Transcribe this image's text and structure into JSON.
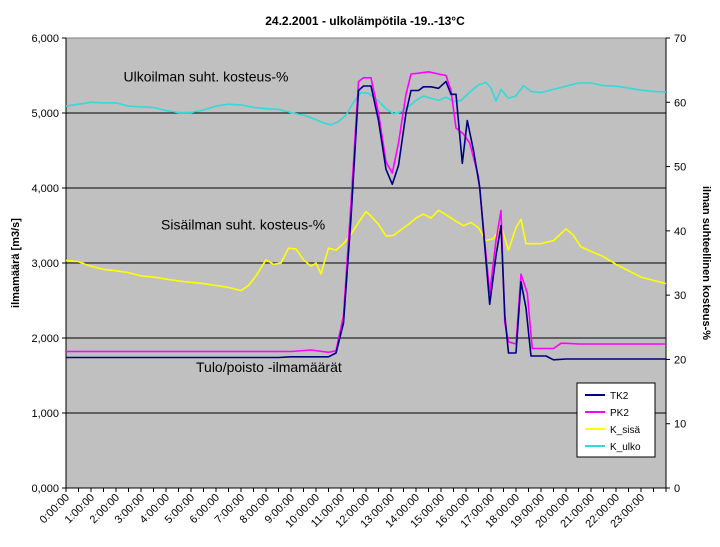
{
  "chart_data": {
    "type": "line",
    "title": "24.2.2001 - ulkolämpötila -19..-13°C",
    "ylabel_left": "ilmamäärä [m3/s]",
    "ylabel_right": "ilman suhteellinen kosteus-%",
    "xlabel": "",
    "ylim_left": [
      0,
      6
    ],
    "yticks_left": [
      "0,000",
      "1,000",
      "2,000",
      "3,000",
      "4,000",
      "5,000",
      "6,000"
    ],
    "ylim_right": [
      0,
      70
    ],
    "yticks_right": [
      "0",
      "10",
      "20",
      "30",
      "40",
      "50",
      "60",
      "70"
    ],
    "xlim": [
      0,
      24
    ],
    "xticks": [
      "0:00:00",
      "1:00:00",
      "2:00:00",
      "3:00:00",
      "4:00:00",
      "5:00:00",
      "6:00:00",
      "7:00:00",
      "8:00:00",
      "9:00:00",
      "10:00:00",
      "11:00:00",
      "12:00:00",
      "13:00:00",
      "14:00:00",
      "15:00:00",
      "16:00:00",
      "17:00:00",
      "18:00:00",
      "19:00:00",
      "20:00:00",
      "21:00:00",
      "22:00:00",
      "23:00:00"
    ],
    "grid": true,
    "legend_position": "lower-right",
    "annotations": [
      {
        "text": "Ulkoilman suht. kosteus-%",
        "x": 2.3,
        "y": 5.42
      },
      {
        "text": "Sisäilman suht. kosteus-%",
        "x": 3.8,
        "y": 3.45
      },
      {
        "text": "Tulo/poisto -ilmamäärät",
        "x": 5.2,
        "y": 1.55
      }
    ],
    "series": [
      {
        "name": "TK2",
        "axis": "left",
        "color": "#000080",
        "points": [
          [
            0,
            1.74
          ],
          [
            8.5,
            1.74
          ],
          [
            9,
            1.75
          ],
          [
            10.5,
            1.75
          ],
          [
            10.8,
            1.8
          ],
          [
            11.1,
            2.2
          ],
          [
            11.4,
            3.6
          ],
          [
            11.7,
            5.3
          ],
          [
            11.9,
            5.36
          ],
          [
            12.2,
            5.36
          ],
          [
            12.5,
            4.9
          ],
          [
            12.8,
            4.25
          ],
          [
            13.05,
            4.05
          ],
          [
            13.3,
            4.3
          ],
          [
            13.6,
            5.0
          ],
          [
            13.8,
            5.3
          ],
          [
            14.1,
            5.3
          ],
          [
            14.3,
            5.35
          ],
          [
            14.6,
            5.35
          ],
          [
            14.9,
            5.33
          ],
          [
            15.2,
            5.42
          ],
          [
            15.4,
            5.25
          ],
          [
            15.6,
            5.25
          ],
          [
            15.85,
            4.33
          ],
          [
            16.05,
            4.9
          ],
          [
            16.3,
            4.5
          ],
          [
            16.55,
            4.0
          ],
          [
            16.95,
            2.45
          ],
          [
            17.2,
            3.1
          ],
          [
            17.4,
            3.5
          ],
          [
            17.55,
            2.3
          ],
          [
            17.7,
            1.8
          ],
          [
            18.0,
            1.8
          ],
          [
            18.2,
            2.75
          ],
          [
            18.4,
            2.4
          ],
          [
            18.6,
            1.76
          ],
          [
            19.2,
            1.76
          ],
          [
            19.5,
            1.71
          ],
          [
            20,
            1.72
          ],
          [
            24,
            1.72
          ]
        ]
      },
      {
        "name": "PK2",
        "axis": "left",
        "color": "#ff00ff",
        "points": [
          [
            0,
            1.82
          ],
          [
            9,
            1.82
          ],
          [
            9.8,
            1.84
          ],
          [
            10.5,
            1.81
          ],
          [
            10.8,
            1.83
          ],
          [
            11.1,
            2.3
          ],
          [
            11.4,
            3.8
          ],
          [
            11.7,
            5.42
          ],
          [
            11.9,
            5.47
          ],
          [
            12.2,
            5.47
          ],
          [
            12.5,
            5.0
          ],
          [
            12.8,
            4.35
          ],
          [
            13.05,
            4.2
          ],
          [
            13.3,
            4.6
          ],
          [
            13.6,
            5.25
          ],
          [
            13.8,
            5.52
          ],
          [
            14.1,
            5.53
          ],
          [
            14.5,
            5.55
          ],
          [
            14.9,
            5.52
          ],
          [
            15.2,
            5.5
          ],
          [
            15.4,
            5.3
          ],
          [
            15.6,
            4.8
          ],
          [
            15.9,
            4.72
          ],
          [
            16.15,
            4.6
          ],
          [
            16.5,
            4.15
          ],
          [
            16.95,
            2.6
          ],
          [
            17.2,
            3.3
          ],
          [
            17.4,
            3.7
          ],
          [
            17.55,
            2.2
          ],
          [
            17.7,
            1.95
          ],
          [
            18.0,
            1.92
          ],
          [
            18.2,
            2.85
          ],
          [
            18.45,
            2.6
          ],
          [
            18.65,
            1.86
          ],
          [
            19.5,
            1.86
          ],
          [
            19.8,
            1.93
          ],
          [
            20,
            1.93
          ],
          [
            20.5,
            1.92
          ],
          [
            24,
            1.92
          ]
        ]
      },
      {
        "name": "K_sisä",
        "axis": "right",
        "color": "#ffff00",
        "points": [
          [
            0,
            35.4
          ],
          [
            0.5,
            35.2
          ],
          [
            1,
            34.5
          ],
          [
            1.5,
            34.0
          ],
          [
            2,
            33.8
          ],
          [
            2.5,
            33.5
          ],
          [
            3,
            33.0
          ],
          [
            3.5,
            32.8
          ],
          [
            4,
            32.5
          ],
          [
            4.5,
            32.2
          ],
          [
            5,
            32.0
          ],
          [
            5.5,
            31.8
          ],
          [
            6,
            31.5
          ],
          [
            6.5,
            31.2
          ],
          [
            7,
            30.7
          ],
          [
            7.3,
            31.5
          ],
          [
            7.6,
            33.0
          ],
          [
            8.0,
            35.5
          ],
          [
            8.3,
            34.8
          ],
          [
            8.6,
            35.0
          ],
          [
            8.9,
            37.3
          ],
          [
            9.2,
            37.2
          ],
          [
            9.5,
            35.5
          ],
          [
            9.8,
            34.5
          ],
          [
            10.0,
            35.0
          ],
          [
            10.2,
            33.3
          ],
          [
            10.5,
            37.3
          ],
          [
            10.8,
            37.0
          ],
          [
            11.1,
            38.0
          ],
          [
            11.4,
            39.5
          ],
          [
            11.7,
            41.3
          ],
          [
            12.0,
            43.0
          ],
          [
            12.2,
            42.3
          ],
          [
            12.5,
            41.0
          ],
          [
            12.8,
            39.2
          ],
          [
            13.1,
            39.3
          ],
          [
            13.4,
            40.2
          ],
          [
            13.7,
            41.0
          ],
          [
            14.0,
            42.0
          ],
          [
            14.3,
            42.6
          ],
          [
            14.6,
            42.0
          ],
          [
            14.9,
            43.2
          ],
          [
            15.2,
            42.5
          ],
          [
            15.6,
            41.5
          ],
          [
            15.9,
            40.8
          ],
          [
            16.2,
            41.3
          ],
          [
            16.5,
            40.5
          ],
          [
            16.8,
            38.5
          ],
          [
            17.1,
            38.8
          ],
          [
            17.4,
            40.8
          ],
          [
            17.7,
            37.0
          ],
          [
            18.0,
            40.5
          ],
          [
            18.2,
            41.8
          ],
          [
            18.4,
            38.0
          ],
          [
            18.7,
            38.0
          ],
          [
            19.0,
            38.0
          ],
          [
            19.5,
            38.5
          ],
          [
            20.0,
            40.3
          ],
          [
            20.3,
            39.3
          ],
          [
            20.6,
            37.5
          ],
          [
            21.0,
            36.8
          ],
          [
            21.5,
            36.0
          ],
          [
            22.0,
            34.8
          ],
          [
            22.5,
            33.8
          ],
          [
            23.0,
            32.8
          ],
          [
            23.5,
            32.3
          ],
          [
            24.0,
            31.8
          ]
        ]
      },
      {
        "name": "K_ulko",
        "axis": "right",
        "color": "#33d9d9",
        "points": [
          [
            0,
            59.4
          ],
          [
            0.5,
            59.7
          ],
          [
            1,
            60.0
          ],
          [
            1.5,
            59.9
          ],
          [
            2,
            59.9
          ],
          [
            2.5,
            59.4
          ],
          [
            3,
            59.3
          ],
          [
            3.5,
            59.2
          ],
          [
            4,
            58.7
          ],
          [
            4.5,
            58.4
          ],
          [
            5,
            58.4
          ],
          [
            5.5,
            58.8
          ],
          [
            6,
            59.4
          ],
          [
            6.5,
            59.7
          ],
          [
            7,
            59.6
          ],
          [
            7.5,
            59.2
          ],
          [
            8,
            59.0
          ],
          [
            8.5,
            58.9
          ],
          [
            9,
            58.4
          ],
          [
            9.5,
            58.0
          ],
          [
            10,
            57.3
          ],
          [
            10.3,
            56.8
          ],
          [
            10.6,
            56.5
          ],
          [
            10.9,
            57.0
          ],
          [
            11.2,
            58.0
          ],
          [
            11.5,
            60.0
          ],
          [
            11.8,
            61.5
          ],
          [
            12.1,
            61.4
          ],
          [
            12.5,
            60.2
          ],
          [
            12.8,
            59.0
          ],
          [
            13.1,
            58.2
          ],
          [
            13.4,
            58.5
          ],
          [
            13.7,
            59.3
          ],
          [
            14.0,
            60.3
          ],
          [
            14.3,
            61.0
          ],
          [
            14.6,
            60.6
          ],
          [
            14.9,
            60.3
          ],
          [
            15.2,
            60.8
          ],
          [
            15.5,
            60.1
          ],
          [
            15.8,
            60.3
          ],
          [
            16.1,
            61.4
          ],
          [
            16.5,
            62.7
          ],
          [
            16.8,
            63.1
          ],
          [
            17.0,
            62.2
          ],
          [
            17.2,
            60.2
          ],
          [
            17.4,
            62.0
          ],
          [
            17.7,
            60.6
          ],
          [
            18.0,
            61.0
          ],
          [
            18.3,
            62.6
          ],
          [
            18.6,
            61.7
          ],
          [
            19.0,
            61.5
          ],
          [
            19.5,
            62.0
          ],
          [
            20.0,
            62.5
          ],
          [
            20.5,
            63.0
          ],
          [
            21.0,
            63.0
          ],
          [
            21.5,
            62.6
          ],
          [
            22.0,
            62.5
          ],
          [
            22.5,
            62.2
          ],
          [
            23.0,
            61.9
          ],
          [
            23.5,
            61.7
          ],
          [
            24.0,
            61.6
          ]
        ]
      }
    ]
  }
}
